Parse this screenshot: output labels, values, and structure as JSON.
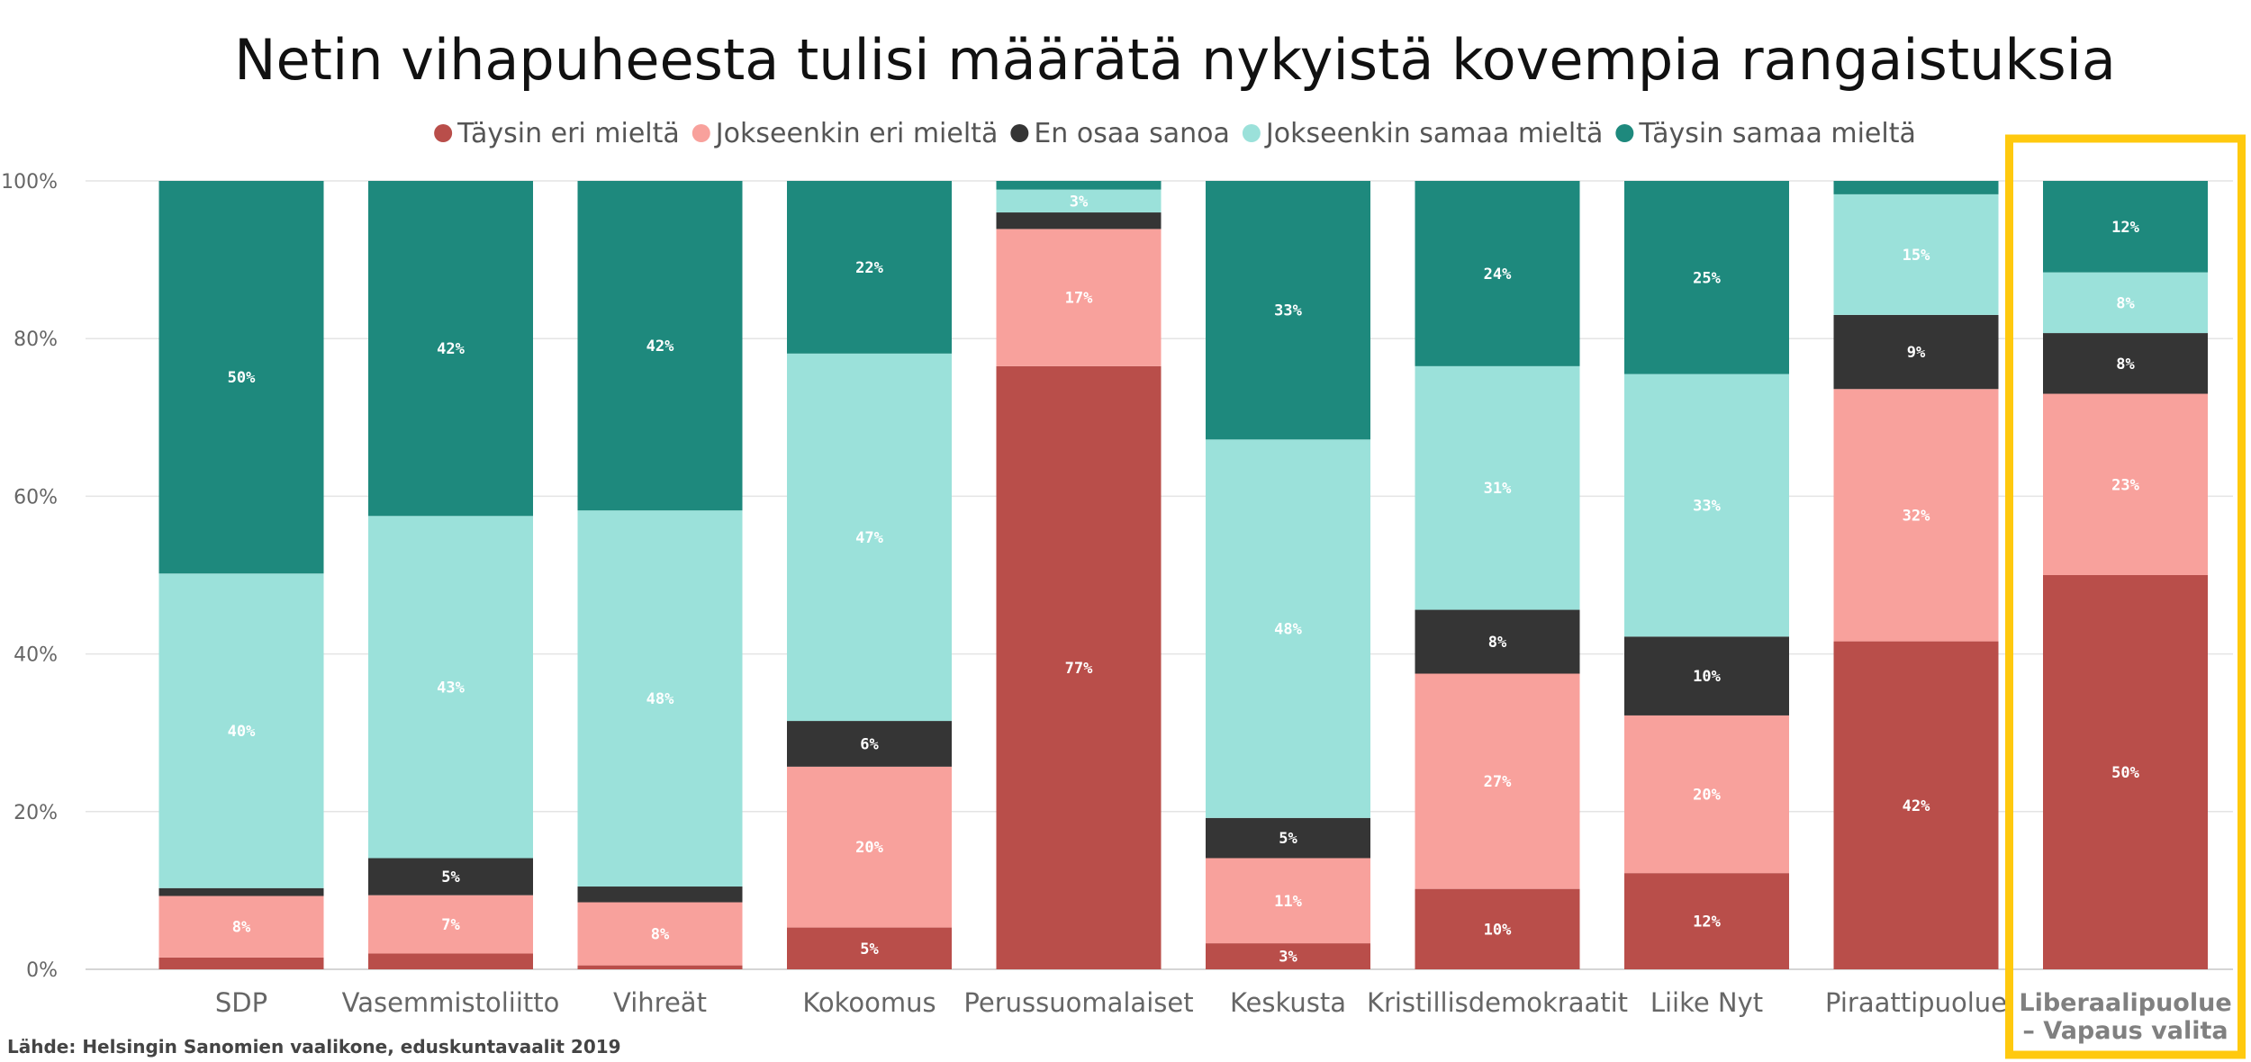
{
  "chart_data": {
    "type": "bar",
    "stacked": true,
    "normalized": true,
    "title": "Netin vihapuheesta tulisi määrätä nykyistä kovempia rangaistuksia",
    "xlabel": "",
    "ylabel": "",
    "ylim": [
      0,
      100
    ],
    "yticks": [
      0,
      20,
      40,
      60,
      80,
      100
    ],
    "ytick_labels": [
      "0%",
      "20%",
      "40%",
      "60%",
      "80%",
      "100%"
    ],
    "legend_position": "top-center",
    "grid": true,
    "categories": [
      "SDP",
      "Vasemmistoliitto",
      "Vihreät",
      "Kokoomus",
      "Perussuomalaiset",
      "Keskusta",
      "Kristillisdemokraatit",
      "Liike Nyt",
      "Piraattipuolue",
      "Liberaalipuolue – Vapaus valita"
    ],
    "category_lines": [
      [
        "SDP"
      ],
      [
        "Vasemmistoliitto"
      ],
      [
        "Vihreät"
      ],
      [
        "Kokoomus"
      ],
      [
        "Perussuomalaiset"
      ],
      [
        "Keskusta"
      ],
      [
        "Kristillisdemokraatit"
      ],
      [
        "Liike Nyt"
      ],
      [
        "Piraattipuolue"
      ],
      [
        "Liberaalipuolue",
        "– Vapaus valita"
      ]
    ],
    "highlighted_category": "Liberaalipuolue – Vapaus valita",
    "highlight_color": "#FFC90E",
    "series": [
      {
        "name": "Täysin eri mieltä",
        "color": "#B94E4A",
        "values": [
          1.5,
          2,
          0.5,
          5.3,
          76.5,
          3.3,
          10.2,
          12.2,
          41.6,
          50
        ]
      },
      {
        "name": "Jokseenkin eri mieltä",
        "color": "#F8A19C",
        "values": [
          7.8,
          7.4,
          8,
          20.4,
          17.4,
          10.8,
          27.3,
          20,
          32,
          23
        ]
      },
      {
        "name": "En osaa sanoa",
        "color": "#353535",
        "values": [
          1,
          4.7,
          2,
          5.8,
          2.1,
          5.1,
          8.1,
          10,
          9.4,
          7.7
        ]
      },
      {
        "name": "Jokseenkin samaa mieltä",
        "color": "#9BE1DA",
        "values": [
          39.9,
          43.4,
          47.7,
          46.6,
          2.9,
          48,
          30.9,
          33.3,
          15.3,
          7.7
        ]
      },
      {
        "name": "Täysin samaa mieltä",
        "color": "#1E897D",
        "values": [
          49.8,
          42.5,
          41.8,
          21.9,
          1.1,
          32.8,
          23.5,
          24.5,
          1.7,
          11.6
        ]
      }
    ],
    "data_labels": [
      [
        "",
        "8%",
        "",
        "40%",
        "50%"
      ],
      [
        "",
        "7%",
        "5%",
        "43%",
        "42%"
      ],
      [
        "",
        "8%",
        "",
        "48%",
        "42%"
      ],
      [
        "5%",
        "20%",
        "6%",
        "47%",
        "22%"
      ],
      [
        "77%",
        "17%",
        "",
        "3%",
        ""
      ],
      [
        "3%",
        "11%",
        "5%",
        "48%",
        "33%"
      ],
      [
        "10%",
        "27%",
        "8%",
        "31%",
        "24%"
      ],
      [
        "12%",
        "20%",
        "10%",
        "33%",
        "25%"
      ],
      [
        "42%",
        "32%",
        "9%",
        "15%",
        ""
      ],
      [
        "50%",
        "23%",
        "8%",
        "8%",
        "12%"
      ]
    ],
    "source": "Lähde: Helsingin Sanomien vaalikone, eduskuntavaalit 2019"
  }
}
